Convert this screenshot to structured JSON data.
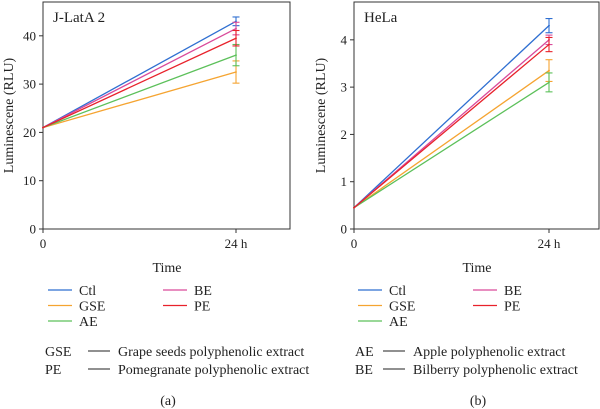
{
  "chart_data": [
    {
      "type": "line",
      "title": "J-LatA 2",
      "xlabel": "Time",
      "ylabel": "Luminescene (RLU)",
      "categories": [
        "0",
        "24 h"
      ],
      "ylim": [
        0,
        47
      ],
      "yticks": [
        0,
        10,
        20,
        30,
        40
      ],
      "grid": false,
      "legend_position": "below",
      "caption": "(a)",
      "series": [
        {
          "name": "Ctl",
          "values": [
            21.0,
            43.0
          ],
          "error": [
            0,
            0.9
          ],
          "color": "#2f6fd1"
        },
        {
          "name": "GSE",
          "values": [
            21.0,
            32.5
          ],
          "error": [
            0,
            2.3
          ],
          "color": "#f5a431"
        },
        {
          "name": "AE",
          "values": [
            21.0,
            36.0
          ],
          "error": [
            0,
            2.2
          ],
          "color": "#5cc05a"
        },
        {
          "name": "BE",
          "values": [
            21.0,
            41.5
          ],
          "error": [
            0,
            1.3
          ],
          "color": "#d94a9a"
        },
        {
          "name": "PE",
          "values": [
            21.0,
            39.5
          ],
          "error": [
            0,
            1.6
          ],
          "color": "#e8222b"
        }
      ]
    },
    {
      "type": "line",
      "title": "HeLa",
      "xlabel": "Time",
      "ylabel": "Luminescene (RLU)",
      "categories": [
        "0",
        "24 h"
      ],
      "ylim": [
        0,
        4.8
      ],
      "yticks": [
        0,
        1,
        2,
        3,
        4
      ],
      "grid": false,
      "legend_position": "below",
      "caption": "(b)",
      "series": [
        {
          "name": "Ctl",
          "values": [
            0.45,
            4.3
          ],
          "error": [
            0,
            0.15
          ],
          "color": "#2f6fd1"
        },
        {
          "name": "GSE",
          "values": [
            0.45,
            3.35
          ],
          "error": [
            0,
            0.23
          ],
          "color": "#f5a431"
        },
        {
          "name": "AE",
          "values": [
            0.45,
            3.1
          ],
          "error": [
            0,
            0.2
          ],
          "color": "#5cc05a"
        },
        {
          "name": "BE",
          "values": [
            0.45,
            4.0
          ],
          "error": [
            0,
            0.1
          ],
          "color": "#d94a9a"
        },
        {
          "name": "PE",
          "values": [
            0.45,
            3.9
          ],
          "error": [
            0,
            0.15
          ],
          "color": "#e8222b"
        }
      ]
    }
  ],
  "abbreviations": {
    "left": [
      {
        "abbr": "GSE",
        "text": "Grape seeds polyphenolic extract"
      },
      {
        "abbr": "PE",
        "text": "Pomegranate polyphenolic extract"
      }
    ],
    "right": [
      {
        "abbr": "AE",
        "text": "Apple polyphenolic extract"
      },
      {
        "abbr": "BE",
        "text": "Bilberry polyphenolic extract"
      }
    ]
  }
}
